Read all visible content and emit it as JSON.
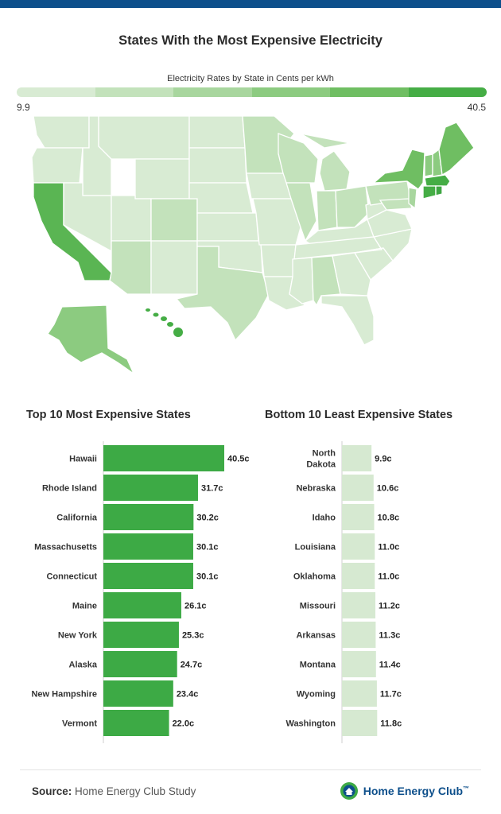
{
  "title": "States With the Most Expensive Electricity",
  "legend": {
    "title": "Electricity Rates by State in Cents per kWh",
    "min": "9.9",
    "max": "40.5",
    "colors": [
      "#d8ebd3",
      "#c3e2bb",
      "#a8d69e",
      "#8ccb80",
      "#6fbe62",
      "#45ad45"
    ]
  },
  "map": {
    "highlight_states": [
      "California",
      "Hawaii",
      "New York",
      "Massachusetts",
      "Rhode Island",
      "Connecticut",
      "Maine",
      "Alaska"
    ]
  },
  "chart_data": [
    {
      "type": "bar",
      "orientation": "horizontal",
      "title": "Top 10 Most Expensive States",
      "categories": [
        "Hawaii",
        "Rhode Island",
        "California",
        "Massachusetts",
        "Connecticut",
        "Maine",
        "New York",
        "Alaska",
        "New Hampshire",
        "Vermont"
      ],
      "values": [
        40.5,
        31.7,
        30.2,
        30.1,
        30.1,
        26.1,
        25.3,
        24.7,
        23.4,
        22.0
      ],
      "labels": [
        "40.5c",
        "31.7c",
        "30.2c",
        "30.1c",
        "30.1c",
        "26.1c",
        "25.3c",
        "24.7c",
        "23.4c",
        "22.0c"
      ],
      "color": "#3daa45"
    },
    {
      "type": "bar",
      "orientation": "horizontal",
      "title": "Bottom 10 Least Expensive States",
      "categories": [
        [
          "North",
          "Dakota"
        ],
        [
          "Nebraska"
        ],
        [
          "Idaho"
        ],
        [
          "Louisiana"
        ],
        [
          "Oklahoma"
        ],
        [
          "Missouri"
        ],
        [
          "Arkansas"
        ],
        [
          "Montana"
        ],
        [
          "Wyoming"
        ],
        [
          "Washington"
        ]
      ],
      "values": [
        9.9,
        10.6,
        10.8,
        11.0,
        11.0,
        11.2,
        11.3,
        11.4,
        11.7,
        11.8
      ],
      "labels": [
        "9.9c",
        "10.6c",
        "10.8c",
        "11.0c",
        "11.0c",
        "11.2c",
        "11.3c",
        "11.4c",
        "11.7c",
        "11.8c"
      ],
      "color": "#d6e9d1"
    }
  ],
  "footer": {
    "source_label": "Source:",
    "source_text": " Home Energy Club Study",
    "brand": "Home Energy Club",
    "brand_tm": "™"
  }
}
